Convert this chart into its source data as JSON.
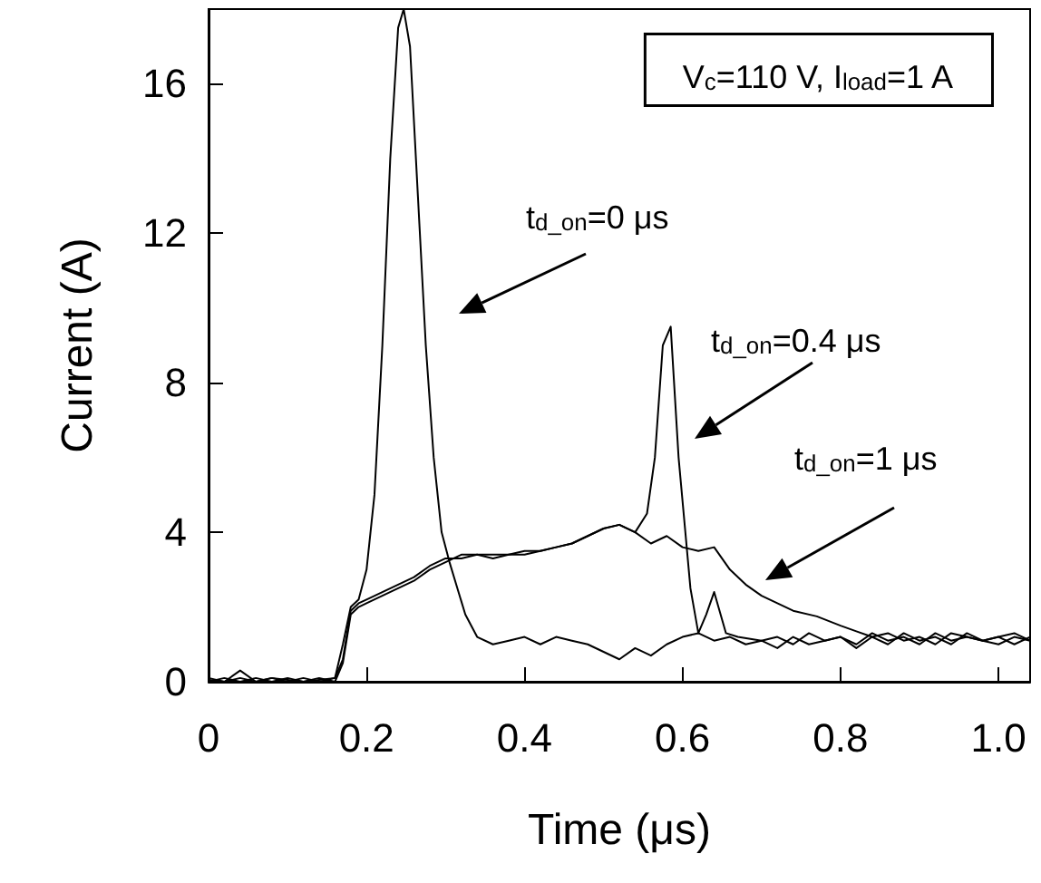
{
  "chart_data": {
    "type": "line",
    "xlabel": "Time (μs)",
    "ylabel": "Current (A)",
    "xlim": [
      0,
      1.04
    ],
    "xticks": [
      0,
      0.2,
      0.4,
      0.6,
      0.8,
      {
        "value": 1,
        "label": "1.0"
      }
    ],
    "ylim": [
      0,
      18
    ],
    "yticks": [
      0,
      4,
      8,
      12,
      16
    ],
    "grid": false,
    "marker": "none",
    "line_style": "solid",
    "annotations": [
      "V$_{c}$=110 V, I$_{load}$=1 A",
      "t$_{d_on}$=0 μs",
      "t$_{d_on}$=0.4 μs",
      "t$_{d_on}$=1 μs"
    ],
    "series": [
      {
        "color": "#000000",
        "x": [
          0,
          0.02,
          0.04,
          0.06,
          0.08,
          0.1,
          0.12,
          0.14,
          0.16,
          0.17,
          0.18,
          0.19,
          0.2,
          0.21,
          0.22,
          0.23,
          0.24,
          0.247,
          0.255,
          0.265,
          0.275,
          0.285,
          0.295,
          0.305,
          0.315,
          0.325,
          0.34,
          0.36,
          0.38,
          0.4,
          0.42,
          0.44,
          0.46,
          0.48,
          0.5,
          0.52,
          0.54,
          0.56,
          0.58,
          0.6,
          0.62,
          0.64,
          0.66,
          0.68,
          0.7,
          0.72,
          0.74,
          0.76,
          0.78,
          0.8,
          0.82,
          0.84,
          0.86,
          0.88,
          0.9,
          0.92,
          0.94,
          0.96,
          0.98,
          1.0,
          1.02,
          1.04
        ],
        "values": [
          0.1,
          0,
          0.3,
          0,
          0.1,
          0,
          0.1,
          0,
          0.1,
          1,
          2,
          2.2,
          3,
          5,
          9,
          14,
          17.5,
          18,
          17,
          13,
          9,
          6,
          4,
          3.2,
          2.5,
          1.8,
          1.2,
          1.0,
          1.1,
          1.2,
          1.0,
          1.2,
          1.1,
          1.0,
          0.8,
          0.6,
          0.9,
          0.7,
          1.0,
          1.2,
          1.3,
          1.1,
          1.2,
          1.0,
          1.1,
          0.9,
          1.2,
          1.0,
          1.1,
          1.2,
          1.0,
          1.3,
          1.1,
          1.2,
          1.0,
          1.3,
          1.1,
          1.2,
          1.1,
          1.0,
          1.2,
          1.1
        ]
      },
      {
        "color": "#000000",
        "x": [
          0,
          0.02,
          0.04,
          0.06,
          0.08,
          0.1,
          0.12,
          0.14,
          0.16,
          0.17,
          0.18,
          0.19,
          0.2,
          0.22,
          0.24,
          0.26,
          0.28,
          0.3,
          0.32,
          0.34,
          0.36,
          0.38,
          0.4,
          0.42,
          0.44,
          0.46,
          0.48,
          0.5,
          0.52,
          0.54,
          0.555,
          0.565,
          0.575,
          0.585,
          0.595,
          0.61,
          0.62,
          0.63,
          0.64,
          0.655,
          0.67,
          0.7,
          0.72,
          0.74,
          0.76,
          0.78,
          0.8,
          0.82,
          0.84,
          0.86,
          0.88,
          0.9,
          0.92,
          0.94,
          0.96,
          0.98,
          1.0,
          1.02,
          1.04
        ],
        "values": [
          0,
          0.1,
          0,
          0.1,
          0,
          0.1,
          0,
          0.1,
          0,
          0.5,
          1.8,
          2.0,
          2.1,
          2.3,
          2.5,
          2.7,
          3.0,
          3.2,
          3.4,
          3.4,
          3.4,
          3.4,
          3.5,
          3.5,
          3.6,
          3.7,
          3.9,
          4.1,
          4.2,
          4.0,
          4.5,
          6,
          9,
          9.5,
          6,
          2.5,
          1.3,
          1.8,
          2.4,
          1.3,
          1.2,
          1.1,
          1.2,
          1.0,
          1.3,
          1.1,
          1.2,
          0.9,
          1.2,
          1.0,
          1.3,
          1.1,
          1.2,
          1.0,
          1.3,
          1.1,
          1.2,
          1.0,
          1.2
        ]
      },
      {
        "color": "#000000",
        "x": [
          0,
          0.02,
          0.04,
          0.06,
          0.08,
          0.1,
          0.12,
          0.14,
          0.16,
          0.17,
          0.18,
          0.19,
          0.2,
          0.22,
          0.24,
          0.26,
          0.28,
          0.3,
          0.32,
          0.34,
          0.36,
          0.38,
          0.4,
          0.42,
          0.44,
          0.46,
          0.48,
          0.5,
          0.52,
          0.54,
          0.56,
          0.58,
          0.6,
          0.62,
          0.64,
          0.66,
          0.68,
          0.7,
          0.72,
          0.74,
          0.77,
          0.8,
          0.82,
          0.84,
          0.86,
          0.88,
          0.9,
          0.92,
          0.94,
          0.96,
          0.98,
          1.0,
          1.02,
          1.04
        ],
        "values": [
          0.05,
          0,
          0.1,
          0,
          0.1,
          0.05,
          0,
          0.05,
          0.1,
          0.6,
          1.9,
          2.1,
          2.2,
          2.4,
          2.6,
          2.8,
          3.1,
          3.3,
          3.3,
          3.4,
          3.3,
          3.4,
          3.4,
          3.5,
          3.6,
          3.7,
          3.9,
          4.1,
          4.2,
          4.0,
          3.7,
          3.9,
          3.6,
          3.5,
          3.6,
          3.0,
          2.6,
          2.3,
          2.1,
          1.9,
          1.75,
          1.5,
          1.35,
          1.2,
          1.3,
          1.1,
          1.2,
          1.0,
          1.3,
          1.2,
          1.1,
          1.2,
          1.3,
          1.1
        ]
      }
    ]
  }
}
